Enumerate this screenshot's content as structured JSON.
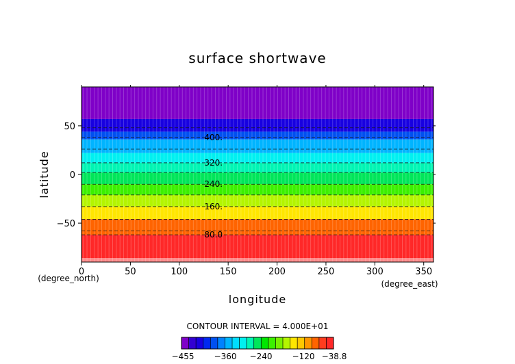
{
  "chart_data": {
    "type": "heatmap",
    "title": "surface shortwave",
    "xlabel": "longitude",
    "ylabel": "latitude",
    "x_unit": "(degree_east)",
    "y_unit": "(degree_north)",
    "xlim": [
      0,
      360
    ],
    "ylim": [
      -90,
      90
    ],
    "x_ticks": [
      0,
      50,
      100,
      150,
      200,
      250,
      300,
      350
    ],
    "y_ticks": [
      -50,
      0,
      50
    ],
    "y_tick_labels": [
      "−50",
      "0",
      "50"
    ],
    "contour_interval_text": "CONTOUR INTERVAL = 4.000E+01",
    "contour_labels": [
      {
        "text": "400.",
        "lat": 38
      },
      {
        "text": "320.",
        "lat": 12
      },
      {
        "text": "240.",
        "lat": -10
      },
      {
        "text": "160.",
        "lat": -33
      },
      {
        "text": "80.0",
        "lat": -62
      }
    ],
    "bands": [
      {
        "lat_from": 57,
        "lat_to": 90,
        "color": "#7f00c8"
      },
      {
        "lat_from": 44,
        "lat_to": 57,
        "color": "#1800e0"
      },
      {
        "lat_from": 36,
        "lat_to": 44,
        "color": "#0050f0"
      },
      {
        "lat_from": 22,
        "lat_to": 36,
        "color": "#00b4ff"
      },
      {
        "lat_from": 12,
        "lat_to": 22,
        "color": "#00f0f0"
      },
      {
        "lat_from": 2,
        "lat_to": 12,
        "color": "#00f5b4"
      },
      {
        "lat_from": -10,
        "lat_to": 2,
        "color": "#00e65a"
      },
      {
        "lat_from": -21,
        "lat_to": -10,
        "color": "#3cf000"
      },
      {
        "lat_from": -33,
        "lat_to": -21,
        "color": "#b4f500"
      },
      {
        "lat_from": -46,
        "lat_to": -33,
        "color": "#ffe600"
      },
      {
        "lat_from": -62,
        "lat_to": -46,
        "color": "#ff6400"
      },
      {
        "lat_from": -86,
        "lat_to": -62,
        "color": "#ff2828"
      },
      {
        "lat_from": -90,
        "lat_to": -86,
        "color": "#ff8c8c"
      }
    ],
    "dashed_contours_lat": [
      48,
      38,
      26,
      12,
      2,
      -10,
      -21,
      -33,
      -46,
      -58,
      -62
    ],
    "colorbar": {
      "colors": [
        "#7f00c8",
        "#3200d2",
        "#1800e0",
        "#0028f0",
        "#0050f0",
        "#0082ff",
        "#00b4ff",
        "#00dcff",
        "#00f0f0",
        "#00f5b4",
        "#00e65a",
        "#00e600",
        "#3cf000",
        "#78f000",
        "#b4f500",
        "#ffe600",
        "#ffc800",
        "#ff9600",
        "#ff6400",
        "#ff3c1e",
        "#ff2828"
      ],
      "tick_labels": [
        "−455",
        "−360",
        "−240",
        "−120",
        "−38.8"
      ]
    }
  }
}
